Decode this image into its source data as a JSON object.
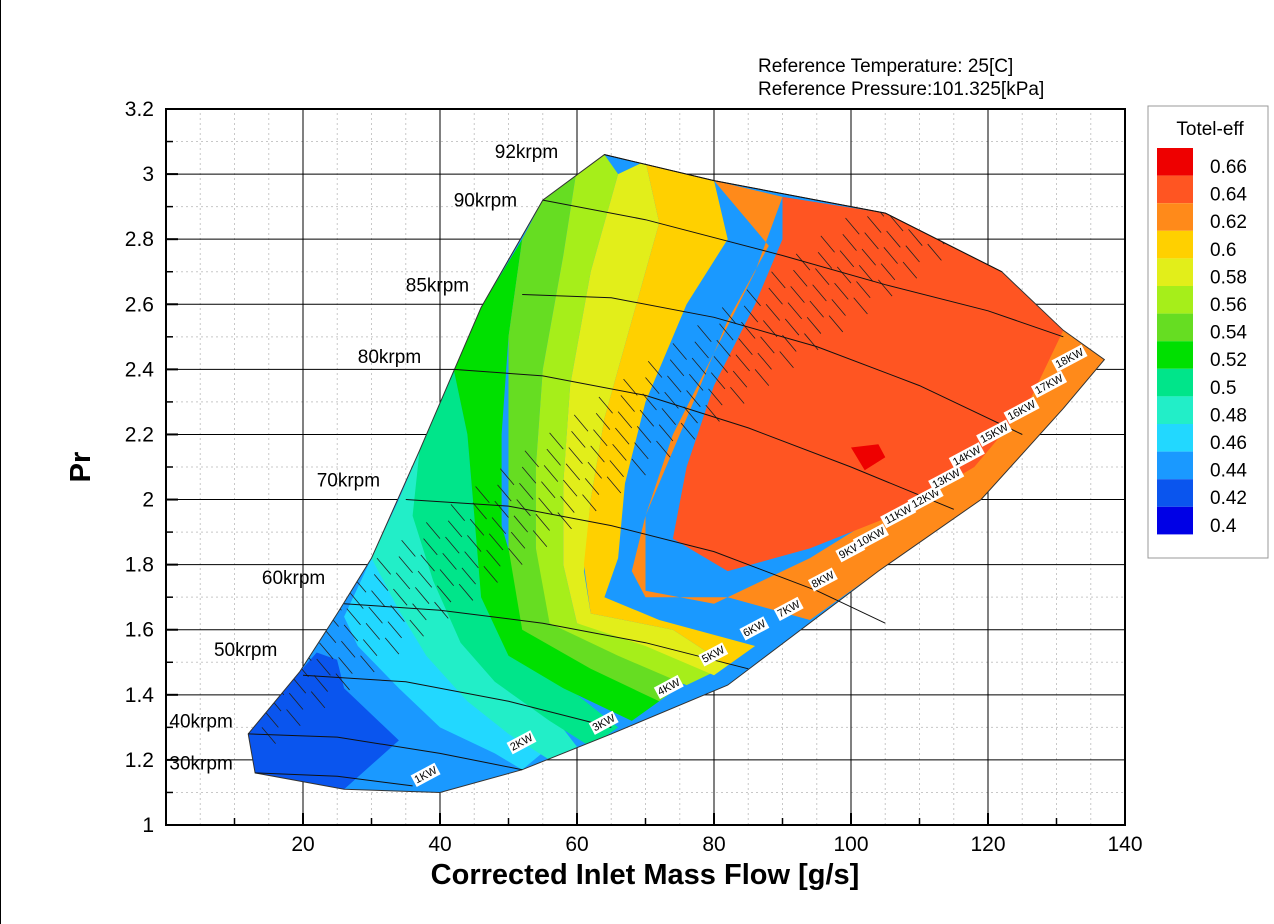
{
  "chart_data": {
    "type": "contour",
    "title": "",
    "xlabel": "Corrected Inlet Mass Flow [g/s]",
    "ylabel": "Pr",
    "xlim": [
      0,
      140
    ],
    "ylim": [
      1,
      3.2
    ],
    "xticks": [
      20,
      40,
      60,
      80,
      100,
      120,
      140
    ],
    "yticks": [
      "1",
      "1.2",
      "1.4",
      "1.6",
      "1.8",
      "2",
      "2.2",
      "2.4",
      "2.6",
      "2.8",
      "3",
      "3.2"
    ],
    "grid": true,
    "reference": {
      "temperature": "Reference Temperature:  25[C]",
      "pressure": "Reference Pressure:101.325[kPa]"
    },
    "legend": {
      "title": "Totel-eff",
      "placement": "right",
      "levels": [
        "0.66",
        "0.64",
        "0.62",
        "0.6",
        "0.58",
        "0.56",
        "0.54",
        "0.52",
        "0.5",
        "0.48",
        "0.46",
        "0.44",
        "0.42",
        "0.4"
      ],
      "colors": [
        "#ee0000",
        "#ff5522",
        "#ff8a1a",
        "#ffd000",
        "#e2ee1a",
        "#a6ee1a",
        "#66dd22",
        "#00e000",
        "#00e58a",
        "#22eec8",
        "#22d8ff",
        "#1a99ff",
        "#0a55ee",
        "#0000e6"
      ]
    },
    "map_boundary": [
      [
        12,
        1.28
      ],
      [
        19.5,
        1.47
      ],
      [
        25,
        1.65
      ],
      [
        30,
        1.82
      ],
      [
        37,
        2.15
      ],
      [
        46,
        2.59
      ],
      [
        55,
        2.92
      ],
      [
        64,
        3.06
      ],
      [
        80,
        2.98
      ],
      [
        105,
        2.88
      ],
      [
        122,
        2.7
      ],
      [
        131,
        2.52
      ],
      [
        137,
        2.43
      ],
      [
        131,
        2.28
      ],
      [
        119,
        2.0
      ],
      [
        104,
        1.78
      ],
      [
        82,
        1.43
      ],
      [
        65,
        1.28
      ],
      [
        52,
        1.17
      ],
      [
        40,
        1.1
      ],
      [
        26,
        1.11
      ],
      [
        13,
        1.16
      ]
    ],
    "efficiency_zones": [
      {
        "level": "0.42",
        "polygon": [
          [
            12,
            1.28
          ],
          [
            19.5,
            1.47
          ],
          [
            22,
            1.53
          ],
          [
            26,
            1.5
          ],
          [
            30,
            1.4
          ],
          [
            34,
            1.3
          ],
          [
            40,
            1.22
          ],
          [
            44,
            1.2
          ],
          [
            38,
            1.12
          ],
          [
            26,
            1.11
          ],
          [
            13,
            1.16
          ]
        ]
      },
      {
        "level": "0.44",
        "polygon": [
          [
            24,
            1.59
          ],
          [
            28,
            1.7
          ],
          [
            32,
            1.62
          ],
          [
            35,
            1.52
          ],
          [
            38,
            1.42
          ],
          [
            41,
            1.35
          ],
          [
            46,
            1.28
          ],
          [
            50,
            1.24
          ],
          [
            52,
            1.17
          ],
          [
            40,
            1.1
          ],
          [
            26,
            1.11
          ],
          [
            34,
            1.26
          ],
          [
            26,
            1.42
          ]
        ]
      },
      {
        "level": "0.46",
        "polygon": [
          [
            26,
            1.64
          ],
          [
            30,
            1.82
          ],
          [
            33,
            1.9
          ],
          [
            36,
            1.72
          ],
          [
            39,
            1.56
          ],
          [
            42,
            1.46
          ],
          [
            48,
            1.35
          ],
          [
            56,
            1.24
          ],
          [
            52,
            1.17
          ],
          [
            48,
            1.22
          ],
          [
            40,
            1.3
          ],
          [
            34,
            1.42
          ],
          [
            28,
            1.55
          ]
        ]
      },
      {
        "level": "0.48",
        "polygon": [
          [
            30,
            1.82
          ],
          [
            34,
            2.0
          ],
          [
            37,
            2.15
          ],
          [
            39,
            1.96
          ],
          [
            41,
            1.75
          ],
          [
            43,
            1.62
          ],
          [
            48,
            1.5
          ],
          [
            56,
            1.35
          ],
          [
            60,
            1.24
          ],
          [
            56,
            1.2
          ],
          [
            50,
            1.28
          ],
          [
            44,
            1.38
          ],
          [
            38,
            1.52
          ],
          [
            34,
            1.66
          ]
        ]
      },
      {
        "level": "0.5",
        "polygon": [
          [
            37,
            2.15
          ],
          [
            42,
            2.4
          ],
          [
            44,
            2.2
          ],
          [
            45,
            1.95
          ],
          [
            46,
            1.75
          ],
          [
            50,
            1.55
          ],
          [
            60,
            1.4
          ],
          [
            66,
            1.3
          ],
          [
            62,
            1.24
          ],
          [
            56,
            1.32
          ],
          [
            48,
            1.44
          ],
          [
            43,
            1.56
          ],
          [
            39,
            1.75
          ],
          [
            36,
            1.95
          ]
        ]
      },
      {
        "level": "0.52",
        "polygon": [
          [
            42,
            2.4
          ],
          [
            46,
            2.59
          ],
          [
            52,
            2.8
          ],
          [
            50,
            2.5
          ],
          [
            49,
            2.2
          ],
          [
            49,
            1.92
          ],
          [
            52,
            1.7
          ],
          [
            62,
            1.5
          ],
          [
            72,
            1.38
          ],
          [
            68,
            1.32
          ],
          [
            58,
            1.42
          ],
          [
            50,
            1.52
          ],
          [
            46,
            1.7
          ],
          [
            45,
            1.95
          ],
          [
            44,
            2.2
          ]
        ]
      },
      {
        "level": "0.54",
        "polygon": [
          [
            52,
            2.8
          ],
          [
            55,
            2.92
          ],
          [
            60,
            3.02
          ],
          [
            58,
            2.75
          ],
          [
            55,
            2.4
          ],
          [
            54,
            2.1
          ],
          [
            54,
            1.85
          ],
          [
            56,
            1.65
          ],
          [
            68,
            1.52
          ],
          [
            76,
            1.44
          ],
          [
            72,
            1.38
          ],
          [
            62,
            1.48
          ],
          [
            52,
            1.6
          ],
          [
            50,
            1.85
          ],
          [
            50,
            2.2
          ],
          [
            50,
            2.5
          ]
        ]
      },
      {
        "level": "0.56",
        "polygon": [
          [
            60,
            3.02
          ],
          [
            64,
            3.06
          ],
          [
            66,
            3.0
          ],
          [
            62,
            2.7
          ],
          [
            59,
            2.35
          ],
          [
            58,
            2.05
          ],
          [
            58,
            1.8
          ],
          [
            60,
            1.62
          ],
          [
            72,
            1.55
          ],
          [
            80,
            1.47
          ],
          [
            76,
            1.43
          ],
          [
            66,
            1.52
          ],
          [
            56,
            1.62
          ],
          [
            54,
            1.85
          ],
          [
            54,
            2.1
          ],
          [
            55,
            2.4
          ],
          [
            58,
            2.75
          ]
        ]
      },
      {
        "level": "0.58",
        "polygon": [
          [
            66,
            3.0
          ],
          [
            70,
            3.04
          ],
          [
            72,
            2.85
          ],
          [
            68,
            2.55
          ],
          [
            64,
            2.25
          ],
          [
            62,
            2.0
          ],
          [
            61,
            1.78
          ],
          [
            62,
            1.65
          ],
          [
            74,
            1.6
          ],
          [
            82,
            1.49
          ],
          [
            80,
            1.46
          ],
          [
            70,
            1.55
          ],
          [
            60,
            1.62
          ],
          [
            58,
            1.8
          ],
          [
            58,
            2.05
          ],
          [
            59,
            2.35
          ],
          [
            62,
            2.7
          ]
        ]
      },
      {
        "level": "0.6",
        "polygon": [
          [
            70,
            3.04
          ],
          [
            80,
            2.98
          ],
          [
            82,
            2.8
          ],
          [
            76,
            2.6
          ],
          [
            70,
            2.3
          ],
          [
            67,
            2.05
          ],
          [
            66,
            1.82
          ],
          [
            64,
            1.7
          ],
          [
            72,
            1.63
          ],
          [
            86,
            1.55
          ],
          [
            82,
            1.49
          ],
          [
            74,
            1.6
          ],
          [
            62,
            1.65
          ],
          [
            61,
            1.8
          ],
          [
            62,
            2.0
          ],
          [
            64,
            2.25
          ],
          [
            68,
            2.55
          ],
          [
            72,
            2.85
          ]
        ]
      },
      {
        "level": "0.62",
        "polygon": [
          [
            80,
            2.98
          ],
          [
            90,
            2.93
          ],
          [
            86,
            2.7
          ],
          [
            80,
            2.45
          ],
          [
            74,
            2.2
          ],
          [
            70,
            1.95
          ],
          [
            68,
            1.78
          ],
          [
            70,
            1.7
          ],
          [
            82,
            1.7
          ],
          [
            94,
            1.63
          ],
          [
            104,
            1.78
          ],
          [
            119,
            2.0
          ],
          [
            131,
            2.28
          ],
          [
            137,
            2.43
          ],
          [
            131,
            2.52
          ],
          [
            128,
            2.48
          ],
          [
            122,
            2.3
          ],
          [
            116,
            2.1
          ],
          [
            104,
            1.95
          ],
          [
            94,
            1.82
          ],
          [
            80,
            1.68
          ],
          [
            70,
            1.72
          ],
          [
            70,
            1.95
          ],
          [
            76,
            2.25
          ],
          [
            82,
            2.55
          ],
          [
            88,
            2.78
          ]
        ]
      },
      {
        "level": "0.64",
        "polygon": [
          [
            90,
            2.93
          ],
          [
            105,
            2.88
          ],
          [
            122,
            2.7
          ],
          [
            128,
            2.58
          ],
          [
            131,
            2.52
          ],
          [
            126,
            2.3
          ],
          [
            118,
            2.1
          ],
          [
            106,
            1.95
          ],
          [
            94,
            1.85
          ],
          [
            82,
            1.78
          ],
          [
            74,
            1.88
          ],
          [
            76,
            2.1
          ],
          [
            80,
            2.35
          ],
          [
            86,
            2.6
          ],
          [
            90,
            2.8
          ]
        ]
      },
      {
        "level": "0.66",
        "polygon": [
          [
            100,
            2.16
          ],
          [
            104,
            2.17
          ],
          [
            105,
            2.13
          ],
          [
            102,
            2.09
          ]
        ]
      }
    ],
    "speed_lines": [
      {
        "label": "92krpm",
        "label_x": 48,
        "label_y": 3.05,
        "x": [
          64,
          80,
          105,
          122
        ],
        "y": [
          3.06,
          2.98,
          2.88,
          2.7
        ]
      },
      {
        "label": "90krpm",
        "label_x": 42,
        "label_y": 2.9,
        "x": [
          55,
          70,
          90,
          105,
          120,
          131
        ],
        "y": [
          2.92,
          2.86,
          2.75,
          2.66,
          2.58,
          2.5
        ]
      },
      {
        "label": "85krpm",
        "label_x": 35,
        "label_y": 2.64,
        "x": [
          52,
          65,
          80,
          95,
          110,
          125
        ],
        "y": [
          2.63,
          2.62,
          2.56,
          2.47,
          2.35,
          2.2
        ]
      },
      {
        "label": "80krpm",
        "label_x": 28,
        "label_y": 2.42,
        "x": [
          42,
          55,
          70,
          85,
          100,
          115
        ],
        "y": [
          2.4,
          2.38,
          2.32,
          2.22,
          2.1,
          1.97
        ]
      },
      {
        "label": "70krpm",
        "label_x": 22,
        "label_y": 2.04,
        "x": [
          35,
          50,
          65,
          80,
          95,
          105
        ],
        "y": [
          2.0,
          1.98,
          1.92,
          1.84,
          1.72,
          1.62
        ]
      },
      {
        "label": "60krpm",
        "label_x": 14,
        "label_y": 1.74,
        "x": [
          26,
          40,
          55,
          70,
          85
        ],
        "y": [
          1.68,
          1.66,
          1.62,
          1.56,
          1.48
        ]
      },
      {
        "label": "50krpm",
        "label_x": 7,
        "label_y": 1.52,
        "x": [
          20,
          35,
          50,
          65
        ],
        "y": [
          1.46,
          1.44,
          1.38,
          1.3
        ]
      },
      {
        "label": "40krpm",
        "label_x": 0.5,
        "label_y": 1.3,
        "x": [
          12,
          25,
          40,
          52
        ],
        "y": [
          1.28,
          1.27,
          1.22,
          1.17
        ]
      },
      {
        "label": "30krpm",
        "label_x": 0.5,
        "label_y": 1.17,
        "x": [
          13,
          25,
          36
        ],
        "y": [
          1.16,
          1.15,
          1.12
        ]
      }
    ],
    "power_labels": [
      {
        "label": "1KW",
        "x": 38,
        "y": 1.15
      },
      {
        "label": "2KW",
        "x": 52,
        "y": 1.25
      },
      {
        "label": "3KW",
        "x": 64,
        "y": 1.31
      },
      {
        "label": "4KW",
        "x": 73.5,
        "y": 1.42
      },
      {
        "label": "5KW",
        "x": 80,
        "y": 1.52
      },
      {
        "label": "6KW",
        "x": 86,
        "y": 1.6
      },
      {
        "label": "7KW",
        "x": 91,
        "y": 1.66
      },
      {
        "label": "8KW",
        "x": 96,
        "y": 1.75
      },
      {
        "label": "9KW",
        "x": 100,
        "y": 1.84
      },
      {
        "label": "10KW",
        "x": 103,
        "y": 1.88
      },
      {
        "label": "11KW",
        "x": 107,
        "y": 1.95
      },
      {
        "label": "12KW",
        "x": 111,
        "y": 2.0
      },
      {
        "label": "13KW",
        "x": 114,
        "y": 2.06
      },
      {
        "label": "14KW",
        "x": 117,
        "y": 2.13
      },
      {
        "label": "15KW",
        "x": 121,
        "y": 2.2
      },
      {
        "label": "16KW",
        "x": 125,
        "y": 2.27
      },
      {
        "label": "17KW",
        "x": 129,
        "y": 2.35
      },
      {
        "label": "18KW",
        "x": 132,
        "y": 2.43
      }
    ]
  }
}
